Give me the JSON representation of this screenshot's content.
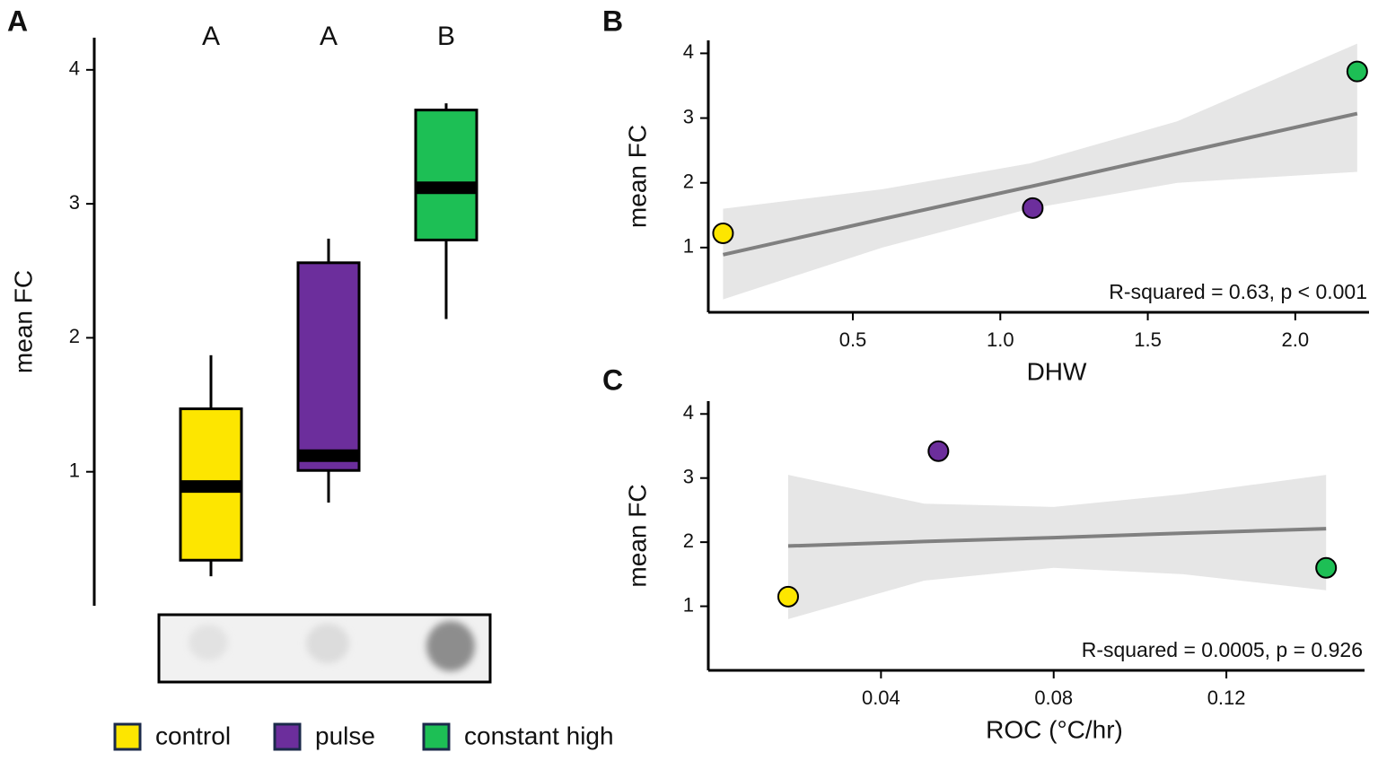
{
  "chart_data": [
    {
      "type": "box",
      "panel_label": "A",
      "ylabel": "mean FC",
      "categories": [
        "control",
        "pulse",
        "constant high"
      ],
      "colors": [
        "#fde600",
        "#6c2e9c",
        "#1dbf55"
      ],
      "group_labels": [
        "A",
        "A",
        "B"
      ],
      "boxes": [
        {
          "whisker_low": 0.22,
          "q1": 0.34,
          "median": 0.89,
          "q3": 1.47,
          "whisker_high": 1.87
        },
        {
          "whisker_low": 0.77,
          "q1": 1.01,
          "median": 1.12,
          "q3": 2.56,
          "whisker_high": 2.74
        },
        {
          "whisker_low": 2.14,
          "q1": 2.73,
          "median": 3.12,
          "q3": 3.7,
          "whisker_high": 3.75
        }
      ],
      "ylim": [
        0,
        4.24
      ],
      "yticks": [
        1,
        2,
        3,
        4
      ]
    },
    {
      "type": "scatter",
      "panel_label": "B",
      "xlabel": "DHW",
      "ylabel": "mean FC",
      "annotation": "R-squared = 0.63, p < 0.001",
      "x": [
        0.06,
        1.11,
        2.21
      ],
      "y": [
        1.22,
        1.61,
        3.72
      ],
      "point_colors": [
        "#fde600",
        "#6c2e9c",
        "#1dbf55"
      ],
      "fit": {
        "x": [
          0.06,
          0.6,
          1.1,
          1.6,
          2.21
        ],
        "y": [
          0.89,
          1.44,
          1.94,
          2.45,
          3.07
        ],
        "lower": [
          0.2,
          1.0,
          1.6,
          2.0,
          2.17
        ],
        "upper": [
          1.6,
          1.9,
          2.3,
          2.95,
          4.15
        ]
      },
      "xlim": [
        0.01,
        2.25
      ],
      "ylim": [
        0,
        4.2
      ],
      "xticks": [
        0.5,
        {
          "value": 1,
          "label": "1.0"
        },
        1.5,
        {
          "value": 2,
          "label": "2.0"
        }
      ],
      "yticks": [
        1,
        2,
        3,
        4
      ]
    },
    {
      "type": "scatter",
      "panel_label": "C",
      "xlabel": "ROC (°C/hr)",
      "ylabel": "mean FC",
      "annotation": "R-squared = 0.0005, p = 0.926",
      "x": [
        0.0185,
        0.0533,
        0.1431
      ],
      "y": [
        1.15,
        3.42,
        1.6
      ],
      "point_colors": [
        "#fde600",
        "#6c2e9c",
        "#1dbf55"
      ],
      "fit": {
        "x": [
          0.0185,
          0.05,
          0.08,
          0.11,
          0.1431
        ],
        "y": [
          1.94,
          2.01,
          2.07,
          2.14,
          2.21
        ],
        "lower": [
          0.8,
          1.4,
          1.6,
          1.5,
          1.25
        ],
        "upper": [
          3.05,
          2.6,
          2.55,
          2.75,
          3.05
        ]
      },
      "xlim": [
        0,
        0.152
      ],
      "ylim": [
        0,
        4.2
      ],
      "xticks": [
        0.04,
        0.08,
        0.12
      ],
      "yticks": [
        1,
        2,
        3,
        4
      ]
    }
  ]
}
